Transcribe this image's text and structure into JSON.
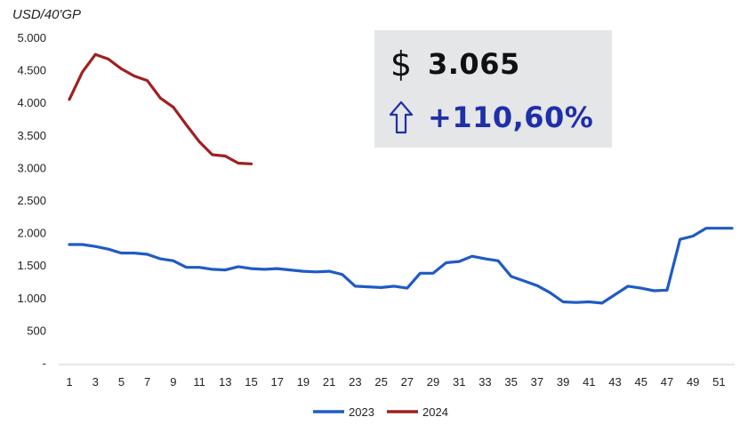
{
  "kpi": {
    "price_icon": "dollar-sign-icon",
    "price_symbol": "$",
    "price_value": "3.065",
    "change_icon": "arrow-up-outline-icon",
    "change_value": "+110,60%"
  },
  "chart_data": {
    "type": "line",
    "unit_label": "USD/40'GP",
    "ylim": [
      0,
      5000
    ],
    "yticks": [
      0,
      500,
      1000,
      1500,
      2000,
      2500,
      3000,
      3500,
      4000,
      4500,
      5000
    ],
    "ytick_labels": [
      "-",
      "500",
      "1.000",
      "1.500",
      "2.000",
      "2.500",
      "3.000",
      "3.500",
      "4.000",
      "4.500",
      "5.000"
    ],
    "xlim": [
      1,
      52
    ],
    "xtick_labels": [
      "1",
      "3",
      "5",
      "7",
      "9",
      "11",
      "13",
      "15",
      "17",
      "19",
      "21",
      "23",
      "25",
      "27",
      "29",
      "31",
      "33",
      "35",
      "37",
      "39",
      "41",
      "43",
      "45",
      "47",
      "49",
      "51"
    ],
    "legend_position": "bottom",
    "grid": false,
    "series": [
      {
        "name": "2023",
        "color": "#1f5bc4",
        "x": [
          1,
          2,
          3,
          4,
          5,
          6,
          7,
          8,
          9,
          10,
          11,
          12,
          13,
          14,
          15,
          16,
          17,
          18,
          19,
          20,
          21,
          22,
          23,
          24,
          25,
          26,
          27,
          28,
          29,
          30,
          31,
          32,
          33,
          34,
          35,
          36,
          37,
          38,
          39,
          40,
          41,
          42,
          43,
          44,
          45,
          46,
          47,
          48,
          49,
          50,
          51,
          52
        ],
        "values": [
          1830,
          1830,
          1800,
          1760,
          1700,
          1700,
          1680,
          1610,
          1580,
          1480,
          1480,
          1450,
          1440,
          1490,
          1460,
          1450,
          1460,
          1440,
          1420,
          1410,
          1420,
          1370,
          1190,
          1180,
          1170,
          1190,
          1160,
          1390,
          1390,
          1550,
          1570,
          1650,
          1610,
          1580,
          1340,
          1270,
          1200,
          1090,
          950,
          940,
          950,
          930,
          1060,
          1190,
          1160,
          1120,
          1130,
          1910,
          1960,
          2080,
          2080,
          2080
        ]
      },
      {
        "name": "2024",
        "color": "#a02020",
        "x": [
          1,
          2,
          3,
          4,
          5,
          6,
          7,
          8,
          9,
          10,
          11,
          12,
          13,
          14,
          15
        ],
        "values": [
          4060,
          4480,
          4750,
          4680,
          4530,
          4420,
          4350,
          4080,
          3940,
          3670,
          3410,
          3210,
          3190,
          3080,
          3070
        ]
      }
    ]
  }
}
